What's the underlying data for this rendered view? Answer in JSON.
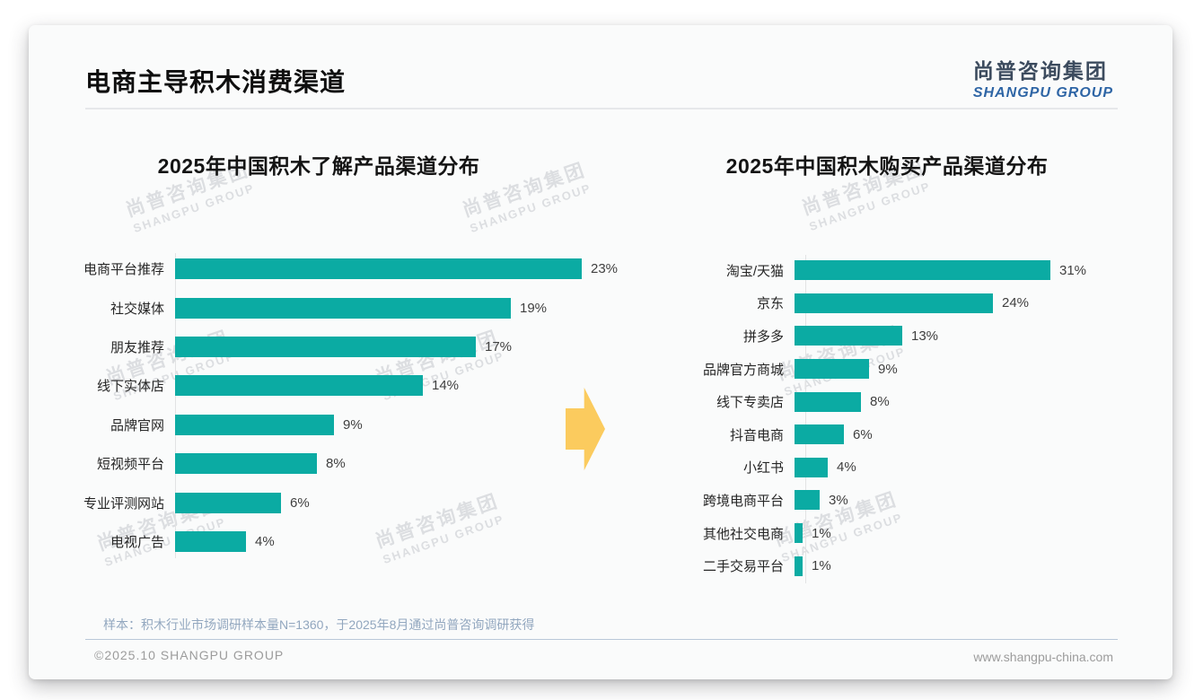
{
  "page": {
    "title": "电商主导积木消费渠道",
    "logo": {
      "cn": "尚普咨询集团",
      "en": "SHANGPU GROUP"
    },
    "watermark": {
      "cn": "尚普咨询集团",
      "en": "SHANGPU GROUP"
    },
    "footnote": "样本：积木行业市场调研样本量N=1360，于2025年8月通过尚普咨询调研获得",
    "footer_left": "©2025.10 SHANGPU GROUP",
    "footer_right": "www.shangpu-china.com"
  },
  "colors": {
    "bar_teal": "#0BABA3",
    "arrow_yellow": "#FBCB5E",
    "logo_blue": "#2E65A5",
    "logo_dark": "#3C4B5E",
    "footnote_blue_gray": "#92A7BF"
  },
  "chart_data": [
    {
      "type": "bar",
      "orientation": "horizontal",
      "title": "2025年中国积木了解产品渠道分布",
      "categories": [
        "电商平台推荐",
        "社交媒体",
        "朋友推荐",
        "线下实体店",
        "品牌官网",
        "短视频平台",
        "专业评测网站",
        "电视广告"
      ],
      "values": [
        23,
        19,
        17,
        14,
        9,
        8,
        6,
        4
      ],
      "unit": "%",
      "xlim": [
        0,
        25
      ],
      "bar_color": "#0BABA3",
      "grid": false,
      "legend": false,
      "value_labels_shown": true
    },
    {
      "type": "bar",
      "orientation": "horizontal",
      "title": "2025年中国积木购买产品渠道分布",
      "categories": [
        "淘宝/天猫",
        "京东",
        "拼多多",
        "品牌官方商城",
        "线下专卖店",
        "抖音电商",
        "小红书",
        "跨境电商平台",
        "其他社交电商",
        "二手交易平台"
      ],
      "values": [
        31,
        24,
        13,
        9,
        8,
        6,
        4,
        3,
        1,
        1
      ],
      "unit": "%",
      "xlim": [
        0,
        35
      ],
      "bar_color": "#0BABA3",
      "grid": false,
      "legend": false,
      "value_labels_shown": true
    }
  ]
}
